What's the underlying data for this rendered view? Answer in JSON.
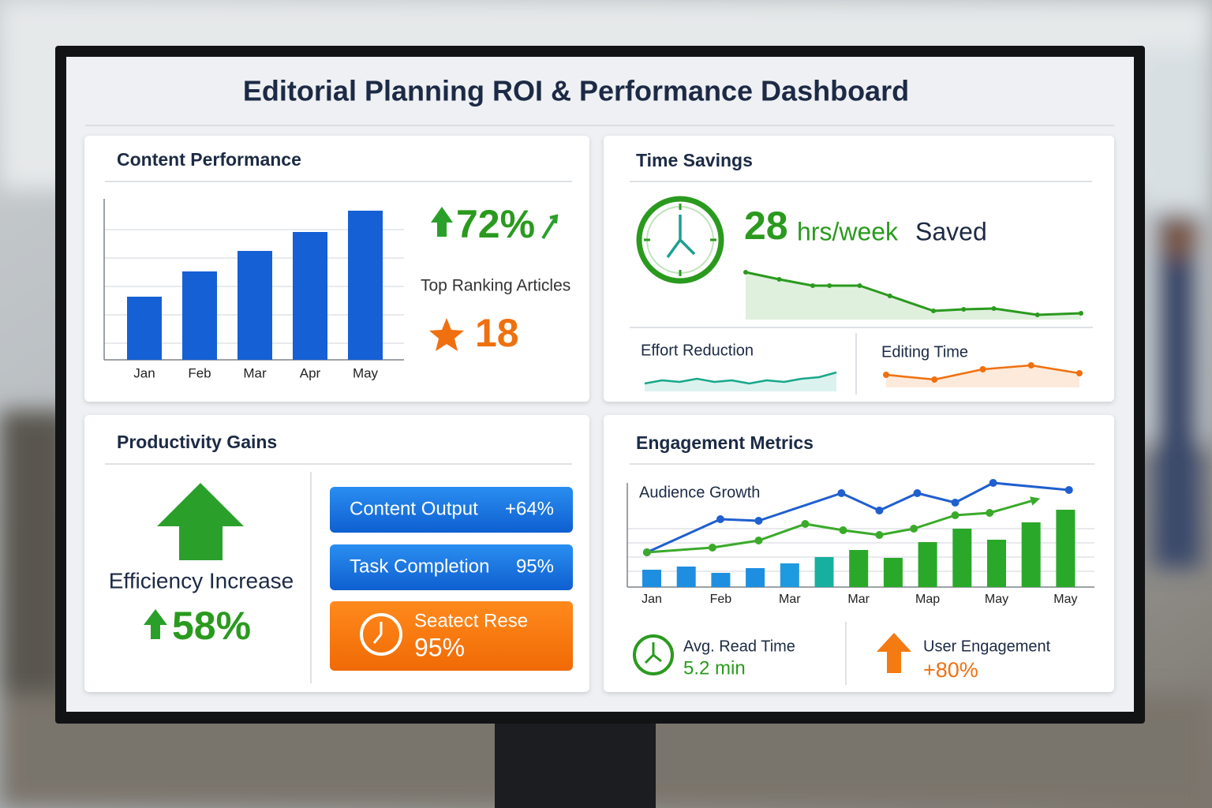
{
  "title": "Editorial Planning ROI & Performance Dashboard",
  "content_performance": {
    "title": "Content Performance",
    "chart": {
      "type": "bar",
      "categories": [
        "Jan",
        "Feb",
        "Mar",
        "Apr",
        "May"
      ],
      "values": [
        80,
        112,
        138,
        162,
        189
      ],
      "color": "#1560d4",
      "ylim": [
        0,
        200
      ]
    },
    "growth": "72%",
    "top_ranking_label": "Top Ranking Articles",
    "top_ranking_value": "18"
  },
  "time_savings": {
    "title": "Time Savings",
    "hours": "28",
    "unit": "hrs/week",
    "saved": "Saved",
    "trend": {
      "type": "line",
      "x": [
        0,
        1,
        2,
        2.5,
        3.4,
        4.3,
        5.6,
        6.5,
        7.4,
        8.7,
        10
      ],
      "values": [
        60,
        51,
        43,
        43,
        43,
        30,
        11,
        13,
        14,
        6,
        8
      ],
      "xlim": [
        0,
        10
      ],
      "ylim": [
        0,
        60
      ],
      "color": "#2a9a1e"
    },
    "effort_reduction": {
      "label": "Effort Reduction",
      "chart": {
        "type": "line",
        "values": [
          2,
          4,
          3,
          5,
          3,
          4,
          2,
          4,
          3,
          5,
          6,
          9
        ],
        "ylim": [
          0,
          12
        ],
        "color": "#17a88a"
      }
    },
    "editing_time": {
      "label": "Editing Time",
      "chart": {
        "type": "line",
        "values": [
          5,
          2,
          8.5,
          11,
          6
        ],
        "ylim": [
          0,
          15
        ],
        "color": "#f07010"
      }
    }
  },
  "productivity_gains": {
    "title": "Productivity Gains",
    "efficiency_label": "Efficiency Increase",
    "efficiency_value": "58%",
    "metrics": [
      {
        "label": "Content Output",
        "value": "+64%"
      },
      {
        "label": "Task Completion",
        "value": "95%"
      },
      {
        "label": "Seatect Rese",
        "value": "95%"
      }
    ]
  },
  "engagement_metrics": {
    "title": "Engagement Metrics",
    "chart": {
      "type": "combo",
      "subtitle": "Audience Growth",
      "categories": [
        "Jan",
        null,
        "Feb",
        null,
        "Mar",
        null,
        "Mar",
        null,
        "Map",
        null,
        "May",
        null,
        "May"
      ],
      "ylim": [
        0,
        140
      ],
      "series": [
        {
          "type": "bar",
          "colors": [
            "#1e8fe0",
            "#1e8fe0",
            "#1e8fe0",
            "#1e8fe0",
            "#1e9ae0",
            "#17b0a0",
            "#2aa82a",
            "#2aa82a",
            "#2aa82a",
            "#2aa82a",
            "#2aa82a",
            "#2aa82a",
            "#2aa82a"
          ],
          "values": [
            22,
            26,
            18,
            24,
            30,
            38,
            47,
            37,
            57,
            74,
            60,
            82,
            98
          ]
        },
        {
          "type": "line",
          "color": "#1f5fcf",
          "x": [
            -0.14,
            1.99,
            3.1,
            5.5,
            6.6,
            7.7,
            8.8,
            9.9,
            12.1
          ],
          "values": [
            44,
            86,
            84,
            119,
            97,
            119,
            107,
            132,
            123
          ]
        },
        {
          "type": "line",
          "color": "#3aaa2a",
          "x": [
            -0.14,
            1.76,
            3.1,
            4.45,
            5.55,
            6.6,
            7.6,
            8.8,
            9.8,
            11
          ],
          "values": [
            44,
            50,
            59,
            80,
            72,
            66,
            74,
            91,
            94,
            109
          ]
        }
      ]
    },
    "avg_read_time": {
      "label": "Avg. Read Time",
      "value": "5.2 min"
    },
    "user_engagement": {
      "label": "User Engagement",
      "value": "+80%"
    }
  }
}
